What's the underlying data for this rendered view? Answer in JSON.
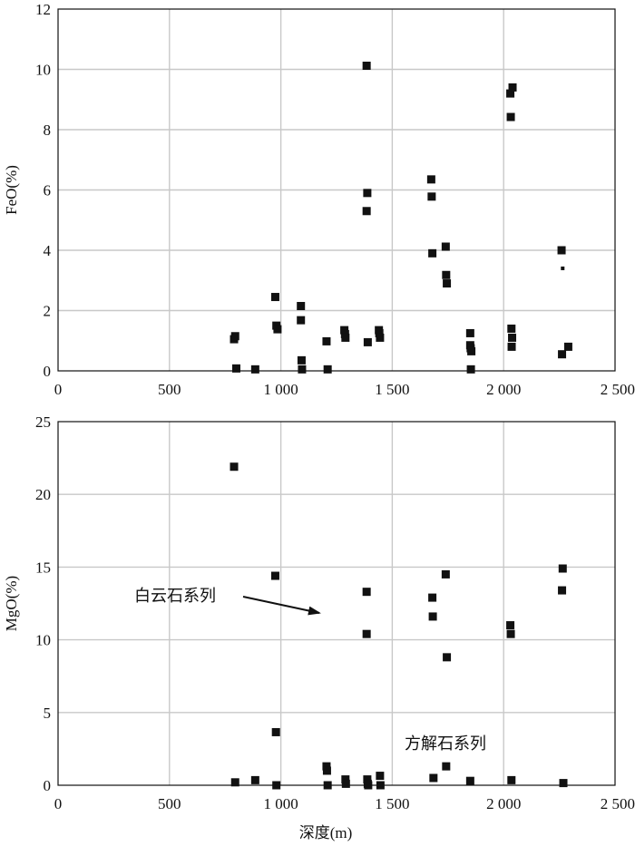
{
  "chart_data": [
    {
      "type": "scatter",
      "ylabel": "FeO(%)",
      "xlabel": "",
      "xlim": [
        0,
        2500
      ],
      "ylim": [
        0,
        12
      ],
      "xticks": [
        0,
        500,
        1000,
        1500,
        2000,
        2500
      ],
      "xtick_labels": [
        "0",
        "500",
        "1 000",
        "1 500",
        "2 000",
        "2 500"
      ],
      "yticks": [
        0,
        2,
        4,
        6,
        8,
        10,
        12
      ],
      "ytick_labels": [
        "0",
        "2",
        "4",
        "6",
        "8",
        "10",
        "12"
      ],
      "grid": true,
      "series": [
        {
          "points": [
            [
              790,
              1.05
            ],
            [
              795,
              1.15
            ],
            [
              800,
              0.08
            ],
            [
              885,
              0.05
            ],
            [
              975,
              2.45
            ],
            [
              980,
              1.5
            ],
            [
              985,
              1.38
            ],
            [
              1090,
              2.15
            ],
            [
              1090,
              1.68
            ],
            [
              1093,
              0.35
            ],
            [
              1095,
              0.05
            ],
            [
              1205,
              0.98
            ],
            [
              1210,
              0.05
            ],
            [
              1285,
              1.35
            ],
            [
              1288,
              1.22
            ],
            [
              1290,
              1.1
            ],
            [
              1385,
              10.12
            ],
            [
              1388,
              5.9
            ],
            [
              1385,
              5.3
            ],
            [
              1390,
              0.95
            ],
            [
              1440,
              1.35
            ],
            [
              1442,
              1.25
            ],
            [
              1445,
              1.1
            ],
            [
              1675,
              6.35
            ],
            [
              1677,
              5.78
            ],
            [
              1680,
              3.9
            ],
            [
              1740,
              4.12
            ],
            [
              1742,
              3.18
            ],
            [
              1745,
              2.9
            ],
            [
              1850,
              1.25
            ],
            [
              1850,
              0.85
            ],
            [
              1852,
              0.75
            ],
            [
              1855,
              0.65
            ],
            [
              1853,
              0.05
            ],
            [
              2030,
              9.2
            ],
            [
              2040,
              9.4
            ],
            [
              2032,
              8.42
            ],
            [
              2035,
              1.4
            ],
            [
              2038,
              1.1
            ],
            [
              2036,
              0.8
            ],
            [
              2260,
              4.0
            ],
            [
              2262,
              0.55
            ],
            [
              2290,
              0.8
            ]
          ]
        },
        {
          "marker": "small",
          "points": [
            [
              2265,
              3.4
            ]
          ]
        }
      ]
    },
    {
      "type": "scatter",
      "ylabel": "MgO(%)",
      "xlabel": "深度(m)",
      "xlim": [
        0,
        2500
      ],
      "ylim": [
        0,
        25
      ],
      "xticks": [
        0,
        500,
        1000,
        1500,
        2000,
        2500
      ],
      "xtick_labels": [
        "0",
        "500",
        "1 000",
        "1 500",
        "2 000",
        "2 500"
      ],
      "yticks": [
        0,
        5,
        10,
        15,
        20,
        25
      ],
      "ytick_labels": [
        "0",
        "5",
        "10",
        "15",
        "20",
        "25"
      ],
      "grid": true,
      "annotations": [
        {
          "text": "白云石系列",
          "arrow": true
        },
        {
          "text": "方解石系列",
          "arrow": false
        }
      ],
      "series": [
        {
          "points": [
            [
              790,
              21.9
            ],
            [
              795,
              0.2
            ],
            [
              885,
              0.35
            ],
            [
              975,
              14.4
            ],
            [
              978,
              3.65
            ],
            [
              980,
              0.0
            ],
            [
              1205,
              1.3
            ],
            [
              1207,
              1.0
            ],
            [
              1210,
              0.0
            ],
            [
              1290,
              0.4
            ],
            [
              1292,
              0.1
            ],
            [
              1385,
              13.3
            ],
            [
              1385,
              10.4
            ],
            [
              1388,
              0.4
            ],
            [
              1390,
              0.1
            ],
            [
              1392,
              0.0
            ],
            [
              1445,
              0.65
            ],
            [
              1447,
              0.0
            ],
            [
              1680,
              12.9
            ],
            [
              1682,
              11.6
            ],
            [
              1685,
              0.5
            ],
            [
              1740,
              14.5
            ],
            [
              1745,
              8.8
            ],
            [
              1742,
              1.3
            ],
            [
              1850,
              0.3
            ],
            [
              2030,
              11.0
            ],
            [
              2032,
              10.4
            ],
            [
              2035,
              0.35
            ],
            [
              2265,
              14.9
            ],
            [
              2262,
              13.4
            ],
            [
              2268,
              0.15
            ]
          ]
        }
      ]
    }
  ]
}
